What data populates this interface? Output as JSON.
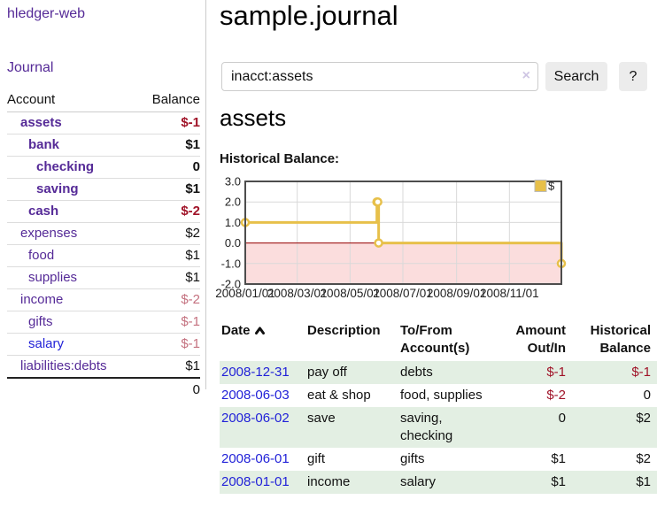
{
  "app": {
    "title": "hledger-web"
  },
  "colors": {
    "link_purple": "#552a97",
    "link_blue": "#2222d8",
    "negative_strong": "#a01328",
    "negative_soft": "#c4717f",
    "row_stripe_green": "#e3efe3"
  },
  "sidebar": {
    "journal_link": "Journal",
    "accounts_table": {
      "headers": {
        "account": "Account",
        "balance": "Balance"
      },
      "rows": [
        {
          "account": "assets",
          "balance": "$-1",
          "depth": 0,
          "bold": true,
          "negative": true,
          "blue": false
        },
        {
          "account": "bank",
          "balance": "$1",
          "depth": 1,
          "bold": true,
          "negative": false,
          "blue": false
        },
        {
          "account": "checking",
          "balance": "0",
          "depth": 2,
          "bold": true,
          "negative": false,
          "blue": false
        },
        {
          "account": "saving",
          "balance": "$1",
          "depth": 2,
          "bold": true,
          "negative": false,
          "blue": false
        },
        {
          "account": "cash",
          "balance": "$-2",
          "depth": 1,
          "bold": true,
          "negative": true,
          "blue": false
        },
        {
          "account": "expenses",
          "balance": "$2",
          "depth": 0,
          "bold": false,
          "negative": false,
          "blue": false
        },
        {
          "account": "food",
          "balance": "$1",
          "depth": 1,
          "bold": false,
          "negative": false,
          "blue": false
        },
        {
          "account": "supplies",
          "balance": "$1",
          "depth": 1,
          "bold": false,
          "negative": false,
          "blue": false
        },
        {
          "account": "income",
          "balance": "$-2",
          "depth": 0,
          "bold": false,
          "negative": true,
          "blue": false
        },
        {
          "account": "gifts",
          "balance": "$-1",
          "depth": 1,
          "bold": false,
          "negative": true,
          "blue": false
        },
        {
          "account": "salary",
          "balance": "$-1",
          "depth": 1,
          "bold": false,
          "negative": true,
          "blue": true
        },
        {
          "account": "liabilities:debts",
          "balance": "$1",
          "depth": 0,
          "bold": false,
          "negative": false,
          "blue": false
        }
      ],
      "total": "0"
    }
  },
  "main": {
    "page_title": "sample.journal",
    "search": {
      "value": "inacct:assets",
      "clear_icon": "×",
      "button_label": "Search",
      "help_label": "?"
    },
    "section_title": "assets",
    "chart_label": "Historical Balance:"
  },
  "chart_data": {
    "type": "line",
    "title": "Historical Balance",
    "style": "step-after",
    "legend": [
      {
        "label": "$",
        "color": "#e7c04a"
      }
    ],
    "series": [
      {
        "name": "$",
        "points": [
          {
            "date": "2008-01-01",
            "day": 0,
            "value": 1
          },
          {
            "date": "2008-06-01",
            "day": 152,
            "value": 2
          },
          {
            "date": "2008-06-02",
            "day": 153,
            "value": 2
          },
          {
            "date": "2008-06-03",
            "day": 154,
            "value": 0
          },
          {
            "date": "2008-12-31",
            "day": 365,
            "value": -1
          }
        ]
      }
    ],
    "x_ticks": [
      {
        "label": "2008/01/01",
        "day": 0
      },
      {
        "label": "2008/03/01",
        "day": 60
      },
      {
        "label": "2008/05/01",
        "day": 121
      },
      {
        "label": "2008/07/01",
        "day": 182
      },
      {
        "label": "2008/09/01",
        "day": 244
      },
      {
        "label": "2008/11/01",
        "day": 305
      }
    ],
    "y_ticks": [
      3.0,
      2.0,
      1.0,
      0.0,
      -1.0,
      -2.0
    ],
    "ylim": [
      -2,
      3
    ],
    "xlim_days": [
      0,
      365
    ],
    "grid": true,
    "legend_position": "top-right",
    "line_color": "#e7c04a",
    "marker_fill": "#ffffff",
    "negative_region_fill": "#fbdddd",
    "zero_line_color": "#990000",
    "grid_color": "#d9d9d9",
    "border_color": "#4d4d4d"
  },
  "transactions": {
    "headers": {
      "date": "Date",
      "description": "Description",
      "accounts": "To/From Account(s)",
      "amount": "Amount Out/In",
      "balance": "Historical Balance"
    },
    "sort": {
      "column": "date",
      "direction": "asc"
    },
    "rows": [
      {
        "date": "2008-12-31",
        "description": "pay off",
        "accounts": "debts",
        "amount": "$-1",
        "amount_negative": true,
        "balance": "$-1",
        "balance_negative": true
      },
      {
        "date": "2008-06-03",
        "description": "eat & shop",
        "accounts": "food, supplies",
        "amount": "$-2",
        "amount_negative": true,
        "balance": "0",
        "balance_negative": false
      },
      {
        "date": "2008-06-02",
        "description": "save",
        "accounts": "saving, checking",
        "amount": "0",
        "amount_negative": false,
        "balance": "$2",
        "balance_negative": false
      },
      {
        "date": "2008-06-01",
        "description": "gift",
        "accounts": "gifts",
        "amount": "$1",
        "amount_negative": false,
        "balance": "$2",
        "balance_negative": false
      },
      {
        "date": "2008-01-01",
        "description": "income",
        "accounts": "salary",
        "amount": "$1",
        "amount_negative": false,
        "balance": "$1",
        "balance_negative": false
      }
    ]
  }
}
